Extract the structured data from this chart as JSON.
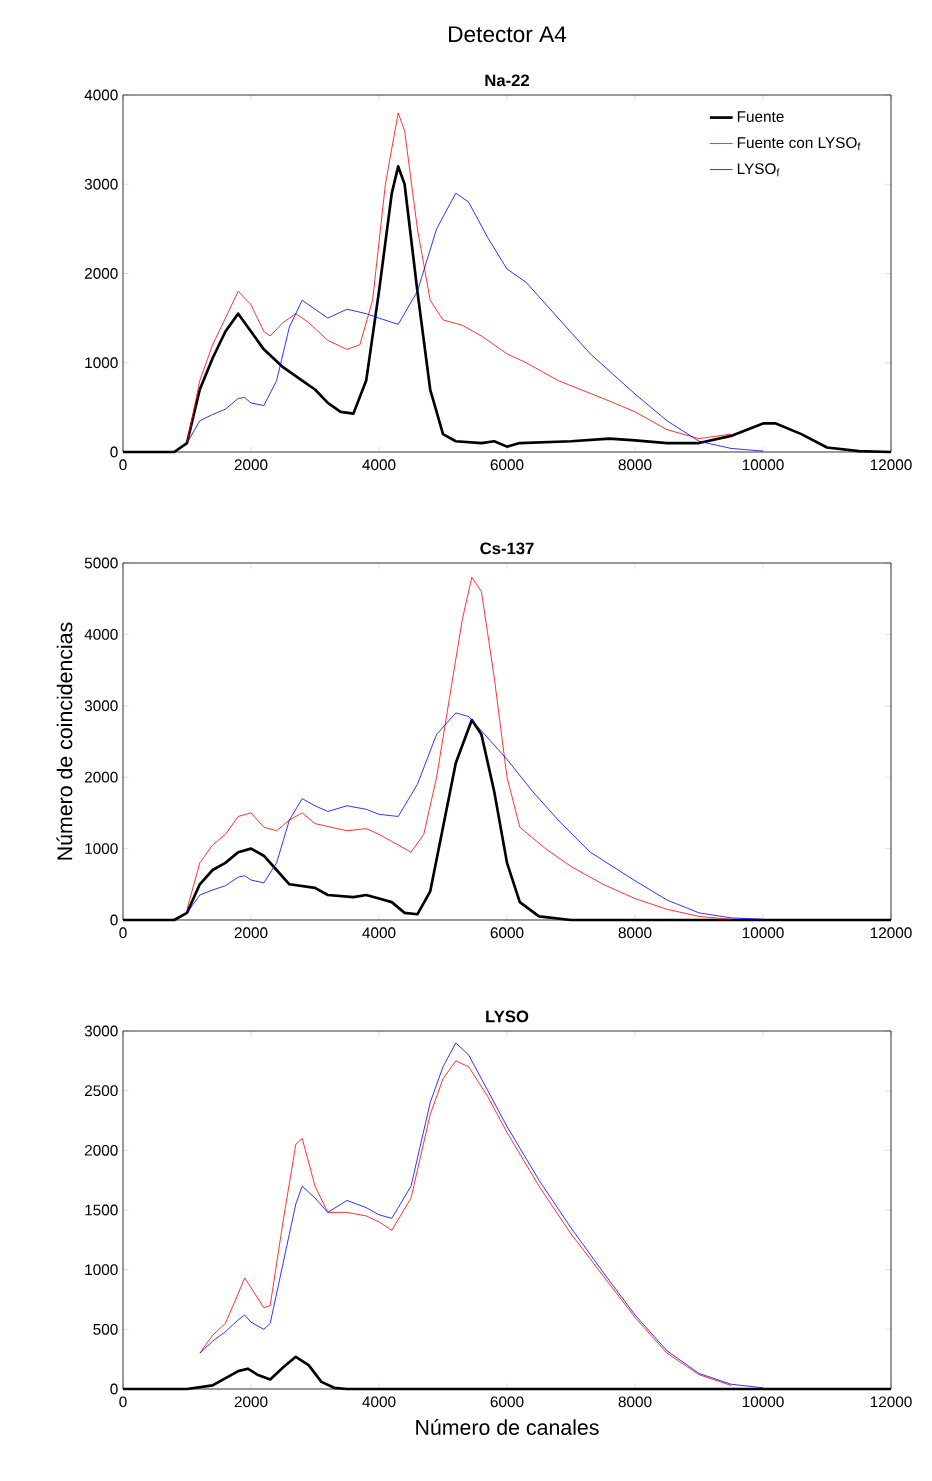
{
  "chart_data": [
    {
      "type": "line",
      "title": "Na-22",
      "annotations": [
        "Detector A4"
      ],
      "xlim": [
        0,
        12000
      ],
      "ylim": [
        0,
        4000
      ],
      "xticks": [
        0,
        2000,
        4000,
        6000,
        8000,
        10000,
        12000
      ],
      "yticks": [
        0,
        1000,
        2000,
        3000,
        4000
      ],
      "legend": "top right",
      "grid": false,
      "series": [
        {
          "name": "Fuente",
          "color": "#000000",
          "x": [
            0,
            800,
            1000,
            1200,
            1400,
            1600,
            1800,
            2000,
            2200,
            2500,
            2800,
            3000,
            3200,
            3400,
            3600,
            3800,
            4000,
            4200,
            4300,
            4400,
            4600,
            4800,
            5000,
            5200,
            5600,
            5800,
            6000,
            6200,
            7000,
            7600,
            8000,
            8500,
            9000,
            9500,
            10000,
            10200,
            10600,
            11000,
            11500,
            12000
          ],
          "values": [
            0,
            0,
            100,
            700,
            1050,
            1350,
            1550,
            1350,
            1150,
            950,
            800,
            700,
            550,
            450,
            430,
            800,
            1800,
            2900,
            3200,
            3000,
            1800,
            700,
            200,
            120,
            100,
            120,
            60,
            100,
            120,
            150,
            130,
            100,
            100,
            180,
            320,
            320,
            200,
            50,
            10,
            0
          ]
        },
        {
          "name": "Fuente con LYSO$_{f}$",
          "color": "#ff0000",
          "x": [
            1000,
            1200,
            1400,
            1600,
            1800,
            2000,
            2200,
            2300,
            2500,
            2700,
            2900,
            3200,
            3500,
            3700,
            3900,
            4100,
            4300,
            4400,
            4600,
            4800,
            5000,
            5300,
            5600,
            6000,
            6300,
            6800,
            7500,
            8000,
            8500,
            9000,
            9500
          ],
          "values": [
            100,
            800,
            1200,
            1500,
            1800,
            1650,
            1350,
            1300,
            1450,
            1550,
            1450,
            1250,
            1150,
            1200,
            1700,
            3000,
            3800,
            3600,
            2500,
            1700,
            1480,
            1420,
            1300,
            1100,
            1000,
            800,
            600,
            450,
            250,
            150,
            200
          ]
        },
        {
          "name": "LYSO$_{f}$",
          "color": "#0000ff",
          "x": [
            1000,
            1200,
            1400,
            1600,
            1800,
            1900,
            2000,
            2200,
            2400,
            2600,
            2800,
            3000,
            3200,
            3500,
            3800,
            4000,
            4300,
            4600,
            4900,
            5200,
            5400,
            5700,
            6000,
            6300,
            6800,
            7300,
            8000,
            8500,
            9000,
            9500,
            10000
          ],
          "values": [
            100,
            350,
            420,
            480,
            600,
            610,
            550,
            520,
            800,
            1400,
            1700,
            1600,
            1500,
            1600,
            1550,
            1500,
            1430,
            1800,
            2500,
            2900,
            2800,
            2400,
            2050,
            1900,
            1500,
            1100,
            650,
            350,
            120,
            40,
            10
          ]
        }
      ]
    },
    {
      "type": "line",
      "title": "Cs-137",
      "ylabel": "Número de coincidencias",
      "xlim": [
        0,
        12000
      ],
      "ylim": [
        0,
        5000
      ],
      "xticks": [
        0,
        2000,
        4000,
        6000,
        8000,
        10000,
        12000
      ],
      "yticks": [
        0,
        1000,
        2000,
        3000,
        4000,
        5000
      ],
      "grid": false,
      "series": [
        {
          "color": "#000000",
          "x": [
            0,
            800,
            1000,
            1200,
            1400,
            1600,
            1800,
            2000,
            2200,
            2400,
            2600,
            3000,
            3200,
            3600,
            3800,
            4000,
            4200,
            4400,
            4600,
            4800,
            5000,
            5200,
            5450,
            5600,
            5800,
            6000,
            6200,
            6500,
            7000,
            12000
          ],
          "values": [
            0,
            0,
            100,
            500,
            700,
            800,
            950,
            1000,
            900,
            700,
            500,
            450,
            350,
            320,
            350,
            300,
            250,
            100,
            80,
            400,
            1300,
            2200,
            2800,
            2600,
            1800,
            800,
            250,
            50,
            0,
            0
          ]
        },
        {
          "color": "#ff0000",
          "x": [
            1000,
            1200,
            1400,
            1600,
            1800,
            2000,
            2200,
            2400,
            2600,
            2800,
            3000,
            3500,
            3800,
            4000,
            4300,
            4500,
            4700,
            4900,
            5100,
            5300,
            5450,
            5600,
            5800,
            6000,
            6200,
            6600,
            7000,
            7500,
            8000,
            8500,
            9000,
            9500
          ],
          "values": [
            150,
            800,
            1050,
            1200,
            1450,
            1500,
            1300,
            1250,
            1400,
            1500,
            1350,
            1250,
            1280,
            1200,
            1050,
            950,
            1200,
            2000,
            3100,
            4200,
            4800,
            4600,
            3400,
            2000,
            1300,
            1000,
            750,
            500,
            300,
            150,
            50,
            10
          ]
        },
        {
          "color": "#0000ff",
          "x": [
            1000,
            1200,
            1400,
            1600,
            1800,
            1900,
            2000,
            2200,
            2400,
            2600,
            2800,
            3000,
            3200,
            3500,
            3800,
            4000,
            4300,
            4600,
            4900,
            5200,
            5400,
            5700,
            6000,
            6400,
            6800,
            7300,
            8000,
            8500,
            9000,
            9500,
            10000
          ],
          "values": [
            100,
            350,
            420,
            480,
            600,
            620,
            560,
            520,
            800,
            1400,
            1700,
            1600,
            1520,
            1600,
            1550,
            1480,
            1450,
            1900,
            2600,
            2900,
            2850,
            2550,
            2250,
            1800,
            1400,
            950,
            550,
            280,
            100,
            30,
            10
          ]
        }
      ]
    },
    {
      "type": "line",
      "title": "LYSO",
      "xlabel": "Número de canales",
      "xlim": [
        0,
        12000
      ],
      "ylim": [
        0,
        3000
      ],
      "xticks": [
        0,
        2000,
        4000,
        6000,
        8000,
        10000,
        12000
      ],
      "yticks": [
        0,
        500,
        1000,
        1500,
        2000,
        2500,
        3000
      ],
      "grid": false,
      "series": [
        {
          "color": "#000000",
          "x": [
            0,
            1000,
            1400,
            1800,
            1950,
            2100,
            2300,
            2500,
            2700,
            2900,
            3100,
            3300,
            3500,
            12000
          ],
          "values": [
            0,
            0,
            30,
            150,
            170,
            120,
            80,
            180,
            270,
            200,
            60,
            10,
            0,
            0
          ]
        },
        {
          "color": "#ff0000",
          "x": [
            1200,
            1400,
            1600,
            1800,
            1900,
            2000,
            2200,
            2300,
            2500,
            2700,
            2800,
            3000,
            3200,
            3500,
            3800,
            4000,
            4200,
            4500,
            4800,
            5000,
            5200,
            5400,
            5700,
            6000,
            6500,
            7000,
            7500,
            8000,
            8500,
            9000,
            9500
          ],
          "values": [
            300,
            450,
            550,
            800,
            930,
            850,
            680,
            700,
            1400,
            2050,
            2100,
            1700,
            1480,
            1480,
            1450,
            1400,
            1330,
            1600,
            2300,
            2600,
            2750,
            2700,
            2450,
            2150,
            1700,
            1300,
            950,
            600,
            300,
            120,
            30
          ]
        },
        {
          "color": "#0000ff",
          "x": [
            1200,
            1400,
            1600,
            1800,
            1900,
            2000,
            2200,
            2300,
            2500,
            2700,
            2800,
            3000,
            3200,
            3500,
            3800,
            4000,
            4200,
            4500,
            4800,
            5000,
            5200,
            5400,
            5700,
            6000,
            6500,
            7000,
            7500,
            8000,
            8500,
            9000,
            9500,
            10000
          ],
          "values": [
            300,
            400,
            480,
            580,
            620,
            560,
            500,
            550,
            1050,
            1550,
            1700,
            1600,
            1480,
            1580,
            1520,
            1460,
            1430,
            1700,
            2400,
            2700,
            2900,
            2800,
            2500,
            2200,
            1750,
            1350,
            980,
            620,
            320,
            130,
            40,
            10
          ]
        }
      ]
    }
  ]
}
